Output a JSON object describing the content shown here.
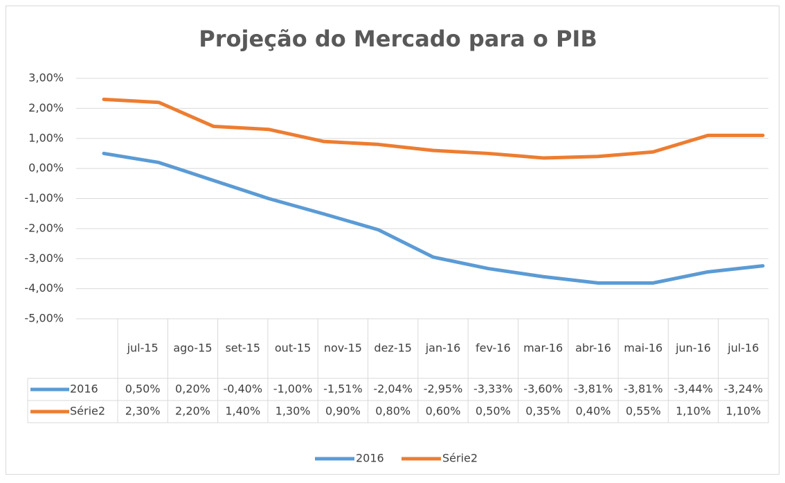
{
  "chart_data": {
    "type": "line",
    "title": "Projeção do Mercado para  o PIB",
    "categories": [
      "jul-15",
      "ago-15",
      "set-15",
      "out-15",
      "nov-15",
      "dez-15",
      "jan-16",
      "fev-16",
      "mar-16",
      "abr-16",
      "mai-16",
      "jun-16",
      "jul-16"
    ],
    "series": [
      {
        "name": "2016",
        "color": "#5b9bd5",
        "values": [
          0.5,
          0.2,
          -0.4,
          -1.0,
          -1.51,
          -2.04,
          -2.95,
          -3.33,
          -3.6,
          -3.81,
          -3.81,
          -3.44,
          -3.24
        ],
        "value_labels": [
          "0,50%",
          "0,20%",
          "-0,40%",
          "-1,00%",
          "-1,51%",
          "-2,04%",
          "-2,95%",
          "-3,33%",
          "-3,60%",
          "-3,81%",
          "-3,81%",
          "-3,44%",
          "-3,24%"
        ]
      },
      {
        "name": "Série2",
        "color": "#ed7d31",
        "values": [
          2.3,
          2.2,
          1.4,
          1.3,
          0.9,
          0.8,
          0.6,
          0.5,
          0.35,
          0.4,
          0.55,
          1.1,
          1.1
        ],
        "value_labels": [
          "2,30%",
          "2,20%",
          "1,40%",
          "1,30%",
          "0,90%",
          "0,80%",
          "0,60%",
          "0,50%",
          "0,35%",
          "0,40%",
          "0,55%",
          "1,10%",
          "1,10%"
        ]
      }
    ],
    "ylim": [
      -5,
      3
    ],
    "yticks": [
      {
        "value": 3,
        "label": "3,00%"
      },
      {
        "value": 2,
        "label": "2,00%"
      },
      {
        "value": 1,
        "label": "1,00%"
      },
      {
        "value": 0,
        "label": "0,00%"
      },
      {
        "value": -1,
        "label": "-1,00%"
      },
      {
        "value": -2,
        "label": "-2,00%"
      },
      {
        "value": -3,
        "label": "-3,00%"
      },
      {
        "value": -4,
        "label": "-4,00%"
      },
      {
        "value": -5,
        "label": "-5,00%"
      }
    ],
    "grid": true,
    "legend": "bottom"
  }
}
